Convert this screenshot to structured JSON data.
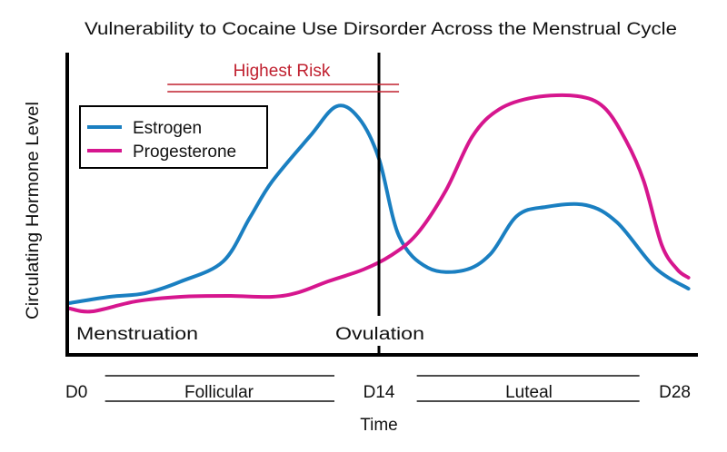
{
  "chart_data": {
    "type": "line",
    "title": "Vulnerability to Cocaine Use Dirsorder Across the Menstrual Cycle",
    "xlabel": "Time",
    "ylabel": "Circulating Hormone Level",
    "xlim": [
      0,
      28
    ],
    "ylim": [
      0,
      100
    ],
    "x_ticks": [
      {
        "day": 0,
        "label": "D0"
      },
      {
        "day": 14,
        "label": "D14"
      },
      {
        "day": 28,
        "label": "D28"
      }
    ],
    "phases": [
      {
        "label": "Follicular",
        "start": 1.7,
        "end": 12
      },
      {
        "label": "Luteal",
        "start": 15.7,
        "end": 25.7
      }
    ],
    "annotations": {
      "menstruation": "Menstruation",
      "ovulation": {
        "label": "Ovulation",
        "day": 14
      },
      "highest_risk": {
        "label": "Highest Risk",
        "start": 4.5,
        "end": 14.9,
        "color": "#c0202f"
      }
    },
    "legend": {
      "placement": "top-left"
    },
    "grid": false,
    "series": [
      {
        "name": "Estrogen",
        "color": "#1a7fc1",
        "points": [
          [
            0.1,
            17.3
          ],
          [
            1.9,
            19.4
          ],
          [
            3.5,
            20.6
          ],
          [
            5.1,
            24.5
          ],
          [
            7.0,
            31.2
          ],
          [
            8.2,
            45.8
          ],
          [
            9.2,
            57.9
          ],
          [
            10.9,
            73
          ],
          [
            12.1,
            83
          ],
          [
            13.1,
            79
          ],
          [
            14.0,
            65.5
          ],
          [
            14.9,
            39.7
          ],
          [
            16.2,
            29.1
          ],
          [
            17.8,
            28.2
          ],
          [
            19.0,
            33.6
          ],
          [
            20.2,
            46.4
          ],
          [
            21.5,
            49.4
          ],
          [
            23.3,
            50
          ],
          [
            24.7,
            44.2
          ],
          [
            26.4,
            29.1
          ],
          [
            27.9,
            22.1
          ]
        ]
      },
      {
        "name": "Progesterone",
        "color": "#d6168e",
        "points": [
          [
            0.1,
            15.5
          ],
          [
            1.1,
            14.5
          ],
          [
            3.1,
            17.9
          ],
          [
            5.1,
            19.4
          ],
          [
            7.2,
            19.7
          ],
          [
            9.2,
            19.4
          ],
          [
            10.4,
            20.9
          ],
          [
            11.7,
            24.5
          ],
          [
            13.3,
            28.5
          ],
          [
            14.5,
            33.0
          ],
          [
            15.7,
            40.3
          ],
          [
            17.0,
            54.8
          ],
          [
            18.2,
            73
          ],
          [
            19.4,
            82
          ],
          [
            21.0,
            86
          ],
          [
            22.9,
            86.4
          ],
          [
            24.1,
            82.7
          ],
          [
            25.1,
            71.5
          ],
          [
            25.9,
            57.9
          ],
          [
            26.7,
            36.7
          ],
          [
            27.4,
            28.5
          ],
          [
            27.9,
            25.8
          ]
        ]
      }
    ]
  }
}
